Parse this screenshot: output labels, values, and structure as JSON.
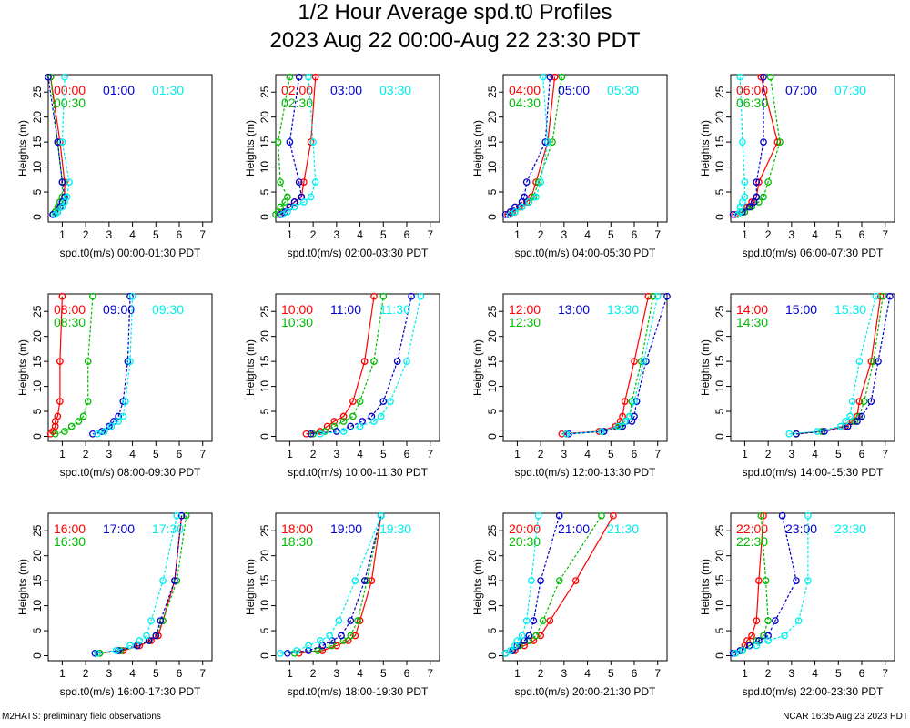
{
  "title": "1/2 Hour Average spd.t0 Profiles",
  "subtitle": "2023 Aug 22 00:00-Aug 22 23:30 PDT",
  "footer_left": "M2HATS: preliminary field observations",
  "footer_right": "NCAR 16:35 Aug 23 2023 PDT",
  "colors": {
    "first": "#ff0000",
    "second": "#00bb00",
    "third": "#0000cc",
    "fourth": "#00eeee"
  },
  "chart_data": {
    "type": "line",
    "ylabel": "Heights (m)",
    "xlim": [
      0.4,
      7.4
    ],
    "ylim": [
      -1,
      28.5
    ],
    "xticks": [
      1,
      2,
      3,
      4,
      5,
      6,
      7
    ],
    "yticks": [
      0,
      5,
      10,
      15,
      20,
      25
    ],
    "heights": [
      0.5,
      1,
      2,
      3,
      4,
      7,
      15,
      28
    ],
    "panels": [
      {
        "xlabel": "spd.t0(m/s) 00:00-01:30 PDT",
        "series": [
          {
            "name": "00:00",
            "values": [
              0.6,
              0.7,
              0.9,
              1.0,
              1.1,
              1.1,
              0.9,
              0.5
            ]
          },
          {
            "name": "00:30",
            "values": [
              0.6,
              0.7,
              0.8,
              0.9,
              1.0,
              1.0,
              0.8,
              0.5
            ]
          },
          {
            "name": "01:00",
            "values": [
              0.6,
              0.8,
              0.9,
              1.0,
              1.1,
              1.0,
              0.8,
              0.4
            ]
          },
          {
            "name": "01:30",
            "values": [
              0.7,
              0.8,
              1.0,
              1.1,
              1.2,
              1.3,
              1.0,
              1.1
            ]
          }
        ]
      },
      {
        "xlabel": "spd.t0(m/s) 02:00-03:30 PDT",
        "series": [
          {
            "name": "02:00",
            "values": [
              0.6,
              0.7,
              1.0,
              1.2,
              1.5,
              1.6,
              1.9,
              2.1
            ]
          },
          {
            "name": "02:30",
            "values": [
              0.4,
              0.5,
              0.6,
              0.8,
              0.9,
              0.6,
              0.5,
              1.0
            ]
          },
          {
            "name": "03:00",
            "values": [
              0.6,
              0.8,
              1.0,
              1.2,
              1.5,
              1.4,
              1.0,
              1.4
            ]
          },
          {
            "name": "03:30",
            "values": [
              0.7,
              0.9,
              1.2,
              1.6,
              1.9,
              2.1,
              2.0,
              1.8
            ]
          }
        ]
      },
      {
        "xlabel": "spd.t0(m/s) 04:00-05:30 PDT",
        "series": [
          {
            "name": "04:00",
            "values": [
              0.6,
              0.8,
              1.1,
              1.4,
              1.6,
              1.8,
              2.3,
              2.6
            ]
          },
          {
            "name": "04:30",
            "values": [
              0.7,
              0.9,
              1.2,
              1.5,
              1.7,
              1.9,
              2.5,
              2.9
            ]
          },
          {
            "name": "05:00",
            "values": [
              0.5,
              0.7,
              0.9,
              1.2,
              1.3,
              1.4,
              2.2,
              2.4
            ]
          },
          {
            "name": "05:30",
            "values": [
              0.7,
              0.9,
              1.2,
              1.5,
              1.8,
              2.0,
              2.3,
              2.1
            ]
          }
        ]
      },
      {
        "xlabel": "spd.t0(m/s) 06:00-07:30 PDT",
        "series": [
          {
            "name": "06:00",
            "values": [
              0.6,
              0.9,
              1.1,
              1.3,
              1.5,
              1.6,
              2.4,
              1.7
            ]
          },
          {
            "name": "06:30",
            "values": [
              0.7,
              1.0,
              1.3,
              1.6,
              1.8,
              2.0,
              2.5,
              2.1
            ]
          },
          {
            "name": "07:00",
            "values": [
              0.5,
              0.9,
              1.2,
              1.4,
              1.5,
              1.5,
              1.8,
              1.8
            ]
          },
          {
            "name": "07:30",
            "values": [
              0.7,
              0.8,
              0.8,
              0.9,
              1.0,
              1.0,
              0.9,
              0.8
            ]
          }
        ]
      },
      {
        "xlabel": "spd.t0(m/s) 08:00-09:30 PDT",
        "series": [
          {
            "name": "08:00",
            "values": [
              0.5,
              0.6,
              0.7,
              0.7,
              0.8,
              0.9,
              0.9,
              1.0
            ]
          },
          {
            "name": "08:30",
            "values": [
              0.7,
              1.1,
              1.4,
              1.7,
              1.9,
              2.1,
              2.1,
              2.3
            ]
          },
          {
            "name": "09:00",
            "values": [
              2.3,
              2.7,
              3.0,
              3.2,
              3.4,
              3.6,
              3.8,
              3.9
            ]
          },
          {
            "name": "09:30",
            "values": [
              2.5,
              2.8,
              3.1,
              3.4,
              3.6,
              3.7,
              3.9,
              4.0
            ]
          }
        ]
      },
      {
        "xlabel": "spd.t0(m/s) 10:00-11:30 PDT",
        "series": [
          {
            "name": "10:00",
            "values": [
              1.7,
              2.3,
              2.6,
              2.9,
              3.3,
              3.7,
              4.2,
              4.6
            ]
          },
          {
            "name": "10:30",
            "values": [
              2.0,
              2.5,
              2.9,
              3.3,
              3.7,
              4.0,
              4.6,
              5.0
            ]
          },
          {
            "name": "11:00",
            "values": [
              1.9,
              3.0,
              3.6,
              4.1,
              4.5,
              5.0,
              5.6,
              6.2
            ]
          },
          {
            "name": "11:30",
            "values": [
              2.3,
              3.3,
              4.0,
              4.6,
              4.9,
              5.3,
              6.0,
              6.6
            ]
          }
        ]
      },
      {
        "xlabel": "spd.t0(m/s) 12:00-13:30 PDT",
        "series": [
          {
            "name": "12:00",
            "values": [
              2.9,
              4.5,
              5.2,
              5.4,
              5.5,
              5.6,
              6.0,
              6.6
            ]
          },
          {
            "name": "12:30",
            "values": [
              3.1,
              4.7,
              5.4,
              5.6,
              5.8,
              5.9,
              6.3,
              6.8
            ]
          },
          {
            "name": "13:00",
            "values": [
              3.2,
              4.7,
              5.5,
              5.9,
              6.0,
              6.1,
              6.5,
              7.4
            ]
          },
          {
            "name": "13:30",
            "values": [
              3.1,
              4.6,
              5.3,
              5.6,
              5.8,
              6.0,
              6.4,
              7.0
            ]
          }
        ]
      },
      {
        "xlabel": "spd.t0(m/s) 14:00-15:30 PDT",
        "series": [
          {
            "name": "14:00",
            "values": [
              3.2,
              4.3,
              5.3,
              5.6,
              5.8,
              5.9,
              6.4,
              6.8
            ]
          },
          {
            "name": "14:30",
            "values": [
              3.2,
              4.3,
              5.4,
              5.7,
              5.9,
              6.1,
              6.5,
              6.9
            ]
          },
          {
            "name": "15:00",
            "values": [
              3.2,
              4.4,
              5.4,
              5.8,
              6.0,
              6.4,
              6.7,
              7.2
            ]
          },
          {
            "name": "15:30",
            "values": [
              2.9,
              4.1,
              5.1,
              5.3,
              5.5,
              5.6,
              5.9,
              6.6
            ]
          }
        ]
      },
      {
        "xlabel": "spd.t0(m/s) 16:00-17:30 PDT",
        "series": [
          {
            "name": "16:00",
            "values": [
              2.6,
              3.6,
              4.3,
              4.8,
              5.1,
              5.3,
              5.8,
              6.1
            ]
          },
          {
            "name": "16:30",
            "values": [
              2.6,
              3.5,
              4.2,
              4.7,
              5.0,
              5.3,
              5.9,
              6.3
            ]
          },
          {
            "name": "17:00",
            "values": [
              2.4,
              3.4,
              4.2,
              4.7,
              5.0,
              5.2,
              5.8,
              6.1
            ]
          },
          {
            "name": "17:30",
            "values": [
              2.5,
              3.3,
              3.9,
              4.3,
              4.6,
              4.8,
              5.3,
              5.9
            ]
          }
        ]
      },
      {
        "xlabel": "spd.t0(m/s) 18:00-19:30 PDT",
        "series": [
          {
            "name": "18:00",
            "values": [
              1.4,
              2.4,
              3.0,
              3.5,
              3.8,
              4.0,
              4.5,
              4.9
            ]
          },
          {
            "name": "18:30",
            "values": [
              1.2,
              2.2,
              2.8,
              3.3,
              3.6,
              3.9,
              4.3,
              4.9
            ]
          },
          {
            "name": "19:00",
            "values": [
              0.9,
              1.8,
              2.4,
              2.8,
              3.2,
              3.6,
              4.2,
              4.9
            ]
          },
          {
            "name": "19:30",
            "values": [
              0.6,
              1.3,
              1.8,
              2.3,
              2.7,
              3.1,
              3.8,
              4.9
            ]
          }
        ]
      },
      {
        "xlabel": "spd.t0(m/s) 20:00-21:30 PDT",
        "series": [
          {
            "name": "20:00",
            "values": [
              0.5,
              0.9,
              1.3,
              1.7,
              2.0,
              2.4,
              3.5,
              5.1
            ]
          },
          {
            "name": "20:30",
            "values": [
              0.5,
              0.8,
              1.1,
              1.5,
              1.8,
              2.1,
              2.8,
              4.6
            ]
          },
          {
            "name": "21:00",
            "values": [
              0.5,
              0.8,
              1.0,
              1.3,
              1.5,
              1.7,
              2.0,
              2.8
            ]
          },
          {
            "name": "21:30",
            "values": [
              0.5,
              0.7,
              0.9,
              1.0,
              1.2,
              1.4,
              1.6,
              1.9
            ]
          }
        ]
      },
      {
        "xlabel": "spd.t0(m/s) 22:00-23:30 PDT",
        "series": [
          {
            "name": "22:00",
            "values": [
              0.6,
              0.9,
              1.0,
              1.1,
              1.3,
              1.5,
              1.6,
              1.8
            ]
          },
          {
            "name": "22:30",
            "values": [
              0.6,
              0.9,
              1.2,
              1.5,
              1.8,
              2.0,
              1.9,
              1.7
            ]
          },
          {
            "name": "23:00",
            "values": [
              0.5,
              0.8,
              1.2,
              1.6,
              2.0,
              2.3,
              3.2,
              2.6
            ]
          },
          {
            "name": "23:30",
            "values": [
              0.6,
              0.9,
              1.5,
              2.0,
              2.7,
              3.3,
              3.7,
              3.7
            ]
          }
        ]
      }
    ]
  }
}
